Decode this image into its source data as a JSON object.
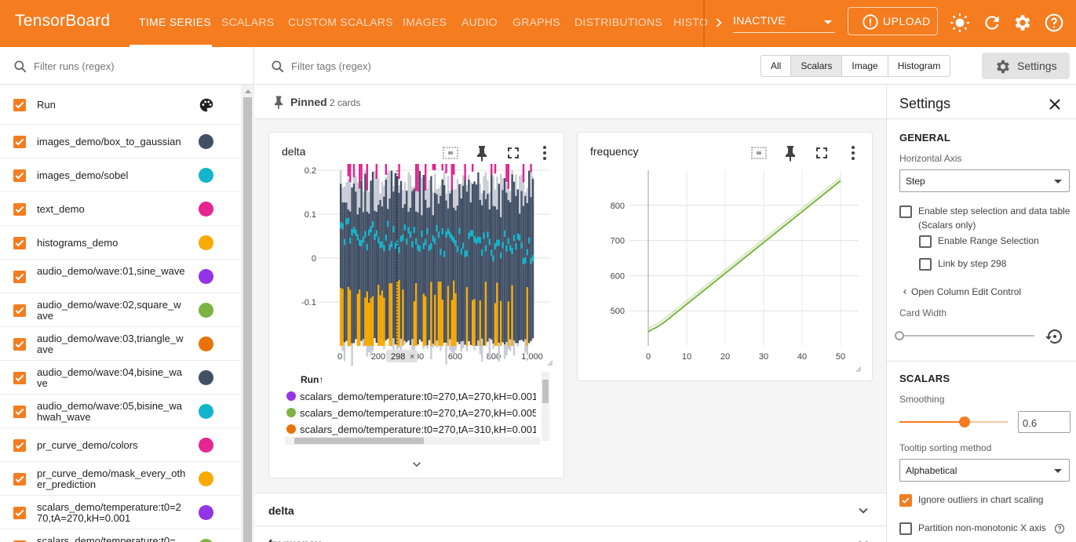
{
  "header": {
    "brand": "TensorBoard",
    "tabs": [
      "TIME SERIES",
      "SCALARS",
      "CUSTOM SCALARS",
      "IMAGES",
      "AUDIO",
      "GRAPHS",
      "DISTRIBUTIONS",
      "HISTO"
    ],
    "status_select": "INACTIVE",
    "upload_label": "UPLOAD"
  },
  "runs": {
    "filter_placeholder": "Filter runs (regex)",
    "header_label": "Run",
    "items": [
      {
        "name": "images_demo/box_to_gaussian",
        "color": "#425066"
      },
      {
        "name": "images_demo/sobel",
        "color": "#12b5cb"
      },
      {
        "name": "text_demo",
        "color": "#e52592"
      },
      {
        "name": "histograms_demo",
        "color": "#f9ab00"
      },
      {
        "name": "audio_demo/wave:01,sine_wave",
        "color": "#9334e6"
      },
      {
        "name": "audio_demo/wave:02,square_wave",
        "color": "#7cb342"
      },
      {
        "name": "audio_demo/wave:03,triangle_wave",
        "color": "#e8710a"
      },
      {
        "name": "audio_demo/wave:04,bisine_wave",
        "color": "#425066"
      },
      {
        "name": "audio_demo/wave:05,bisine_wahwah_wave",
        "color": "#12b5cb"
      },
      {
        "name": "pr_curve_demo/colors",
        "color": "#e52592"
      },
      {
        "name": "pr_curve_demo/mask_every_other_prediction",
        "color": "#f9ab00"
      },
      {
        "name": "scalars_demo/temperature:t0=270,tA=270,kH=0.001",
        "color": "#9334e6"
      },
      {
        "name": "scalars_demo/temperature:t0=",
        "color": "#7cb342"
      }
    ]
  },
  "main": {
    "tag_filter_placeholder": "Filter tags (regex)",
    "type_filters": [
      "All",
      "Scalars",
      "Image",
      "Histogram"
    ],
    "type_filter_selected": "Scalars",
    "settings_button": "Settings",
    "pinned_label": "Pinned",
    "pinned_count": "2 cards",
    "collapsed_groups": [
      "delta",
      "frequency"
    ]
  },
  "delta_card": {
    "title": "delta",
    "y_ticks": [
      "0.2",
      "0.1",
      "0",
      "-0.1"
    ],
    "x_ticks": [
      "0",
      "200",
      "400",
      "600",
      "800",
      "1,000"
    ],
    "step_marker": "298",
    "legend_header": "Run",
    "legend_rows": [
      {
        "name": "scalars_demo/temperature:t0=270,tA=270,kH=0.001",
        "color": "#9334e6"
      },
      {
        "name": "scalars_demo/temperature:t0=270,tA=270,kH=0.005",
        "color": "#7cb342"
      },
      {
        "name": "scalars_demo/temperature:t0=270,tA=310,kH=0.001",
        "color": "#e8710a"
      }
    ]
  },
  "chart_data": [
    {
      "type": "line",
      "title": "delta",
      "x_ticks": [
        0,
        200,
        400,
        600,
        800,
        1000
      ],
      "y_ticks": [
        0.2,
        0.1,
        0,
        -0.1
      ],
      "xlim": [
        0,
        1000
      ],
      "ylim": [
        -0.2,
        0.2
      ],
      "step_marker": 298,
      "series": [
        {
          "name": "images_demo/box_to_gaussian",
          "color": "#425066"
        },
        {
          "name": "images_demo/sobel",
          "color": "#12b5cb"
        },
        {
          "name": "text_demo",
          "color": "#e52592"
        },
        {
          "name": "histograms_demo",
          "color": "#f9ab00"
        }
      ],
      "grid": true
    },
    {
      "type": "line",
      "title": "frequency",
      "x_ticks": [
        0,
        10,
        20,
        30,
        40,
        50
      ],
      "y_ticks": [
        800,
        700,
        600,
        500
      ],
      "xlim": [
        0,
        50
      ],
      "ylim": [
        400,
        900
      ],
      "series": [
        {
          "color": "#7cb342",
          "x": [
            0,
            1,
            2,
            3,
            4,
            50
          ],
          "y": [
            440,
            447,
            452,
            459,
            466,
            870
          ]
        }
      ],
      "grid": true
    }
  ],
  "frequency_card": {
    "title": "frequency",
    "y_ticks": [
      "800",
      "700",
      "600",
      "500"
    ],
    "x_ticks": [
      "0",
      "10",
      "20",
      "30",
      "40",
      "50"
    ]
  },
  "settings": {
    "title": "Settings",
    "general_label": "GENERAL",
    "horizontal_axis_label": "Horizontal Axis",
    "horizontal_axis_value": "Step",
    "step_selection_label": "Enable step selection and data table (Scalars only)",
    "range_selection_label": "Enable Range Selection",
    "link_by_step_label": "Link by step 298",
    "column_edit_label": "Open Column Edit Control",
    "card_width_label": "Card Width",
    "scalars_label": "SCALARS",
    "smoothing_label": "Smoothing",
    "smoothing_value": "0.6",
    "smoothing_fraction": 0.6,
    "tooltip_sort_label": "Tooltip sorting method",
    "tooltip_sort_value": "Alphabetical",
    "ignore_outliers_label": "Ignore outliers in chart scaling",
    "partition_label": "Partition non-monotonic X axis"
  },
  "colors": {
    "accent": "#f57c1f"
  }
}
